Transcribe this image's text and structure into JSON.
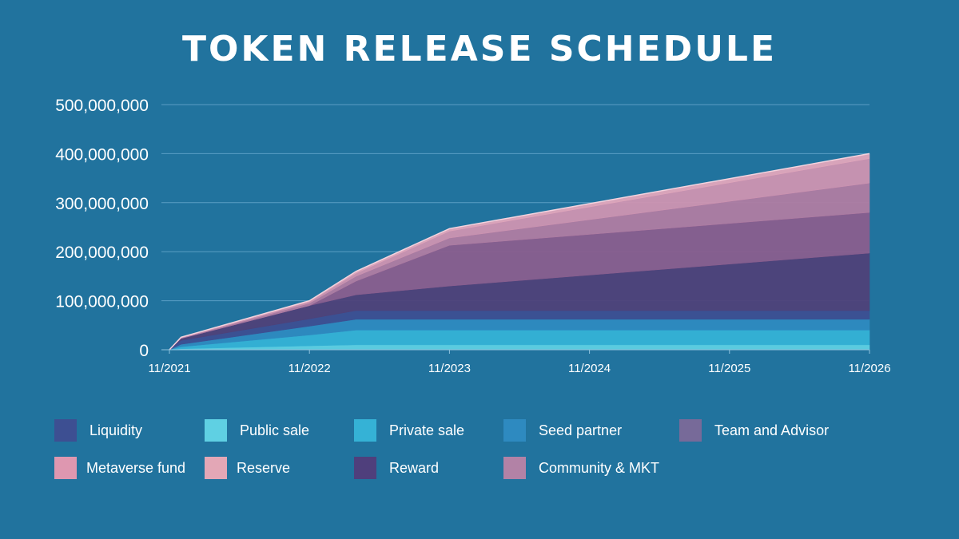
{
  "chart_data": {
    "type": "area",
    "stacked": true,
    "title": "TOKEN RELEASE SCHEDULE",
    "x": [
      "11/2021",
      "12/2021",
      "11/2022",
      "03/2023",
      "11/2023",
      "11/2026"
    ],
    "xticks": [
      "11/2021",
      "11/2022",
      "11/2023",
      "11/2024",
      "11/2025",
      "11/2026"
    ],
    "yticks": [
      "0",
      "100,000,000",
      "200,000,000",
      "300,000,000",
      "400,000,000",
      "500,000,000"
    ],
    "ylim": [
      0,
      500000000
    ],
    "grid": true,
    "legend_position": "bottom",
    "series": [
      {
        "name": "Public sale",
        "color": "#5fd0e3",
        "values": [
          0,
          2000000,
          8000000,
          10000000,
          10000000,
          10000000
        ]
      },
      {
        "name": "Private sale",
        "color": "#35b2d6",
        "values": [
          0,
          4000000,
          22000000,
          30000000,
          30000000,
          30000000
        ]
      },
      {
        "name": "Seed partner",
        "color": "#2e8ac0",
        "values": [
          0,
          5000000,
          18000000,
          22000000,
          22000000,
          22000000
        ]
      },
      {
        "name": "Liquidity",
        "color": "#3d4f92",
        "values": [
          0,
          8000000,
          15000000,
          18000000,
          18000000,
          18000000
        ]
      },
      {
        "name": "Reward",
        "color": "#4f4179",
        "values": [
          0,
          4000000,
          27000000,
          32000000,
          50000000,
          117000000
        ]
      },
      {
        "name": "Team and Advisor",
        "color": "#8a5e8e",
        "values": [
          0,
          0,
          0,
          28000000,
          83000000,
          83000000
        ]
      },
      {
        "name": "Community & MKT",
        "color": "#b07ca2",
        "values": [
          0,
          1000000,
          5000000,
          10000000,
          15000000,
          60000000
        ]
      },
      {
        "name": "Metaverse fund",
        "color": "#cf94b1",
        "values": [
          0,
          1000000,
          3000000,
          6000000,
          14000000,
          50000000
        ]
      },
      {
        "name": "Reserve",
        "color": "#e3a7bc",
        "values": [
          0,
          500000,
          2000000,
          4000000,
          5000000,
          10000000
        ]
      }
    ]
  },
  "legend": {
    "items": [
      {
        "label": "Liquidity",
        "color": "#3d4f92"
      },
      {
        "label": "Public sale",
        "color": "#5fd0e3"
      },
      {
        "label": "Private sale",
        "color": "#35b2d6"
      },
      {
        "label": "Seed partner",
        "color": "#2e8ac0"
      },
      {
        "label": "Team and Advisor",
        "color": "#776a99"
      },
      {
        "label": "Metaverse fund",
        "color": "#de97b0"
      },
      {
        "label": "Reserve",
        "color": "#e3a7b6"
      },
      {
        "label": "Reward",
        "color": "#4f3f7c"
      },
      {
        "label": "Community & MKT",
        "color": "#b282a6"
      }
    ]
  }
}
